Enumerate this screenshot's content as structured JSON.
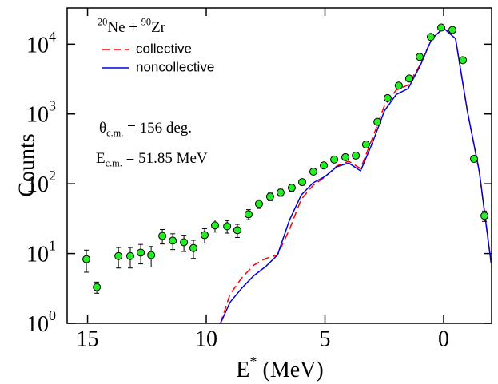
{
  "chart_data": {
    "type": "scatter",
    "ylabel": "Counts",
    "xlabel": [
      {
        "text": "E"
      },
      {
        "text": "*",
        "script": "sup"
      },
      {
        "text": " (MeV)"
      }
    ],
    "annotations": [
      [
        {
          "text": "20",
          "script": "sup"
        },
        {
          "text": "Ne + "
        },
        {
          "text": "90",
          "script": "sup"
        },
        {
          "text": "Zr"
        }
      ],
      [
        {
          "text": "θ"
        },
        {
          "text": "c.m.",
          "script": "sub"
        },
        {
          "text": " = 156 deg."
        }
      ],
      [
        {
          "text": "E"
        },
        {
          "text": "c.m.",
          "script": "sub"
        },
        {
          "text": " = 51.85 MeV"
        }
      ]
    ],
    "xlim": [
      15.86,
      -2.02
    ],
    "xticks": [
      15,
      10,
      5,
      0
    ],
    "ylim": [
      1,
      33000
    ],
    "log_y": true,
    "yticks": [
      {
        "value": 1,
        "label": "10",
        "exponent": "0"
      },
      {
        "value": 10,
        "label": "10",
        "exponent": "1"
      },
      {
        "value": 100,
        "label": "10",
        "exponent": "2"
      },
      {
        "value": 1000,
        "label": "10",
        "exponent": "3"
      },
      {
        "value": 10000,
        "label": "10",
        "exponent": "4"
      }
    ],
    "color": "#22ee22",
    "x": [
      15.05,
      14.61,
      13.7,
      13.2,
      12.76,
      12.32,
      11.85,
      11.41,
      10.94,
      10.54,
      10.07,
      9.63,
      9.12,
      8.69,
      8.22,
      7.78,
      7.31,
      6.87,
      6.4,
      5.96,
      5.49,
      5.05,
      4.61,
      4.14,
      3.7,
      3.27,
      2.79,
      2.36,
      1.89,
      1.45,
      1.01,
      0.54,
      0.1,
      -0.37,
      -0.81,
      -1.28,
      -1.72
    ],
    "values": [
      8.3,
      3.3,
      9.2,
      9.2,
      10.3,
      9.5,
      17.9,
      15.3,
      14.5,
      12,
      18.4,
      25.3,
      24.6,
      21.6,
      36.5,
      51.5,
      65.4,
      74.8,
      87.7,
      105.6,
      149,
      183,
      222,
      240,
      253,
      365,
      771,
      1687,
      2543,
      3214,
      6573,
      12700,
      17300,
      16000,
      5900,
      227,
      34.8
    ],
    "errors": [
      2.9,
      0.6,
      3,
      3,
      3.2,
      3.1,
      4.2,
      3.9,
      3.8,
      3.5,
      4.3,
      5,
      5,
      4.6,
      6,
      7.2,
      8.1,
      8.6,
      9.4,
      10.3,
      12.2,
      13.5,
      14.9,
      15.5,
      15.9,
      19.1,
      27.8,
      41,
      50,
      57,
      81,
      113,
      131,
      126,
      77,
      15,
      5.9
    ],
    "legend": "upper left",
    "lines": {
      "type": "line",
      "x": [
        9.4,
        9.0,
        8.5,
        8.0,
        7.5,
        7.0,
        6.5,
        6.0,
        5.5,
        5.0,
        4.5,
        4.0,
        3.5,
        3.0,
        2.5,
        2.0,
        1.5,
        1.0,
        0.5,
        0,
        -0.5,
        -1.0,
        -1.5,
        -2.0
      ],
      "series": [
        {
          "name": "collective",
          "color": "#ff0000",
          "dash": true,
          "values": [
            1,
            2.6,
            4.5,
            6.8,
            8.5,
            9.5,
            22,
            60,
            95,
            125,
            180,
            210,
            165,
            450,
            1300,
            2200,
            2600,
            5000,
            12000,
            17000,
            12000,
            1100,
            150,
            7.3
          ]
        },
        {
          "name": "noncollective",
          "color": "#0000dd",
          "dash": false,
          "values": [
            1,
            2.0,
            3.2,
            4.8,
            6.5,
            9.5,
            30,
            69,
            103,
            127,
            175,
            198,
            153,
            385,
            1100,
            1900,
            2300,
            4800,
            12000,
            17000,
            12000,
            1100,
            150,
            7.3
          ]
        }
      ]
    }
  }
}
